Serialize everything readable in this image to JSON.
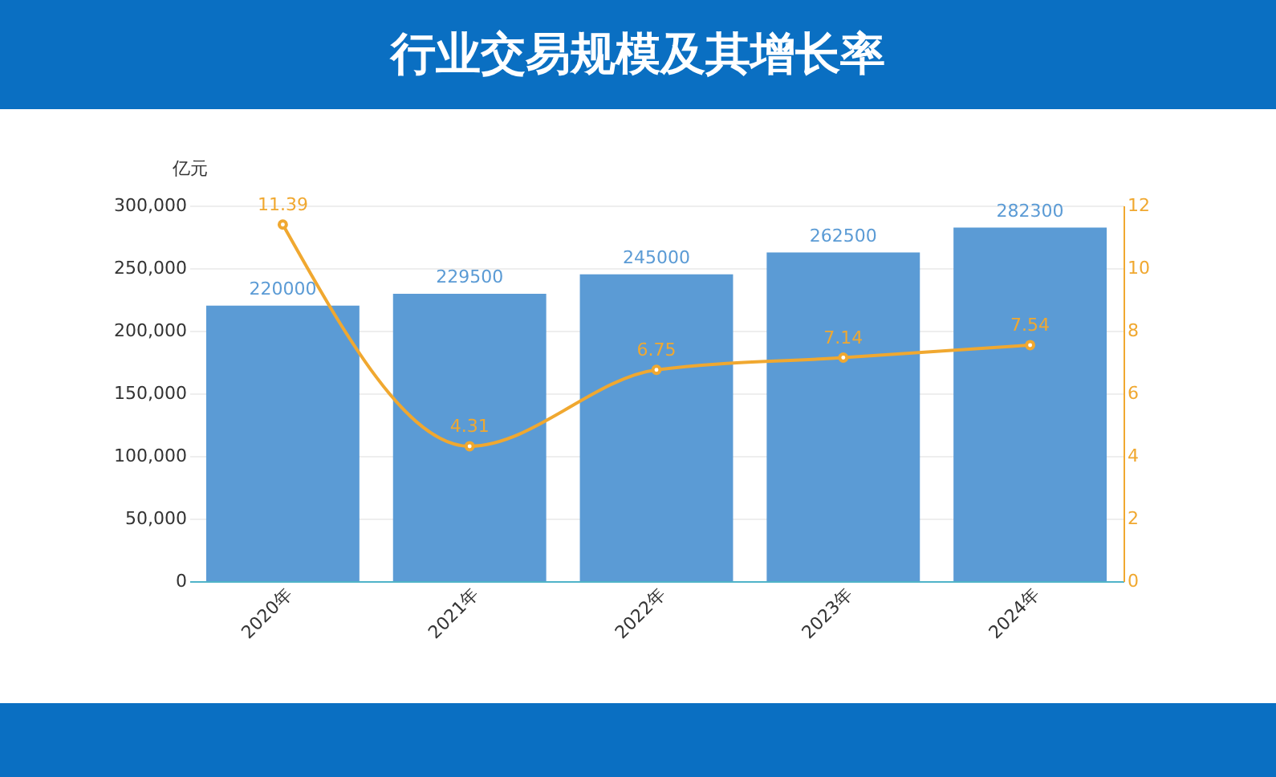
{
  "chart_data": {
    "type": "bar",
    "title": "行业交易规模及其增长率",
    "ylabel": "亿元",
    "categories": [
      "2020年",
      "2021年",
      "2022年",
      "2023年",
      "2024年"
    ],
    "series": [
      {
        "color": "#5b9bd5",
        "values": [
          220000,
          229500,
          245000,
          262500,
          282300
        ]
      },
      {
        "type": "line",
        "axis": "y2",
        "color": "#f0a830",
        "values": [
          11.39,
          4.31,
          6.75,
          7.14,
          7.54
        ]
      }
    ],
    "ylim": [
      0,
      300000
    ],
    "yticks": [
      0,
      {
        "value": 50000,
        "label": "50,000"
      },
      {
        "value": 100000,
        "label": "100,000"
      },
      {
        "value": 150000,
        "label": "150,000"
      },
      {
        "value": 200000,
        "label": "200,000"
      },
      {
        "value": 250000,
        "label": "250,000"
      },
      {
        "value": 300000,
        "label": "300,000"
      }
    ],
    "y2lim": [
      0,
      12
    ],
    "y2ticks": [
      0,
      2,
      4,
      6,
      8,
      10,
      12
    ],
    "grid": "y",
    "data_labels": true,
    "marker": "circle"
  }
}
